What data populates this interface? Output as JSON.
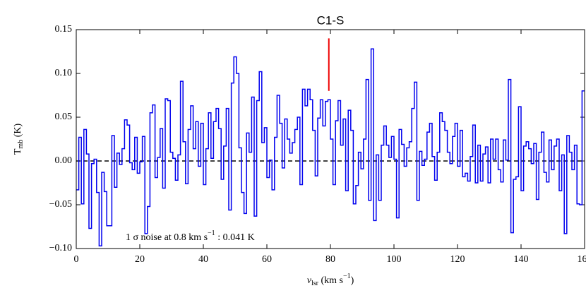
{
  "chart_data": {
    "type": "step",
    "title": "C1-S",
    "xlabel": [
      "v",
      "lsr",
      " (km s",
      "−1",
      ")"
    ],
    "ylabel": [
      "T",
      "mb",
      " (K)"
    ],
    "annotation": [
      "1 σ noise at 0.8 km s",
      "−1",
      " : 0.041 K"
    ],
    "xlim": [
      0,
      160
    ],
    "xticks": [
      0,
      20,
      40,
      60,
      80,
      100,
      120,
      140,
      160
    ],
    "ylim": [
      -0.1,
      0.15
    ],
    "yticks": [
      {
        "value": -0.1,
        "label": "−0.10"
      },
      {
        "value": -0.05,
        "label": "−0.05"
      },
      {
        "value": 0,
        "label": "0.00"
      },
      0.05,
      {
        "value": 0.1,
        "label": "0.10"
      },
      0.15
    ],
    "hline": 0,
    "marker": {
      "x": 79.5,
      "y": [
        0.08,
        0.14
      ],
      "color": "#ee0000"
    },
    "series": [
      {
        "color": "#0000ee",
        "x": [
          0,
          0.8,
          1.6,
          2.4,
          3.2,
          4,
          4.8,
          5.6,
          6.4,
          7.2,
          8,
          8.8,
          9.6,
          10.4,
          11.2,
          12,
          12.8,
          13.6,
          14.4,
          15.2,
          16,
          16.8,
          17.6,
          18.4,
          19.2,
          20,
          20.8,
          21.6,
          22.4,
          23.2,
          24,
          24.8,
          25.6,
          26.4,
          27.2,
          28,
          28.8,
          29.6,
          30.4,
          31.2,
          32,
          32.8,
          33.6,
          34.4,
          35.2,
          36,
          36.8,
          37.6,
          38.4,
          39.2,
          40,
          40.8,
          41.6,
          42.4,
          43.2,
          44,
          44.8,
          45.6,
          46.4,
          47.2,
          48,
          48.8,
          49.6,
          50.4,
          51.2,
          52,
          52.8,
          53.6,
          54.4,
          55.2,
          56,
          56.8,
          57.6,
          58.4,
          59.2,
          60,
          60.8,
          61.6,
          62.4,
          63.2,
          64,
          64.8,
          65.6,
          66.4,
          67.2,
          68,
          68.8,
          69.6,
          70.4,
          71.2,
          72,
          72.8,
          73.6,
          74.4,
          75.2,
          76,
          76.8,
          77.6,
          78.4,
          79.2,
          80,
          80.8,
          81.6,
          82.4,
          83.2,
          84,
          84.8,
          85.6,
          86.4,
          87.2,
          88,
          88.8,
          89.6,
          90.4,
          91.2,
          92,
          92.8,
          93.6,
          94.4,
          95.2,
          96,
          96.8,
          97.6,
          98.4,
          99.2,
          100,
          100.8,
          101.6,
          102.4,
          103.2,
          104,
          104.8,
          105.6,
          106.4,
          107.2,
          108,
          108.8,
          109.6,
          110.4,
          111.2,
          112,
          112.8,
          113.6,
          114.4,
          115.2,
          116,
          116.8,
          117.6,
          118.4,
          119.2,
          120,
          120.8,
          121.6,
          122.4,
          123.2,
          124,
          124.8,
          125.6,
          126.4,
          127.2,
          128,
          128.8,
          129.6,
          130.4,
          131.2,
          132,
          132.8,
          133.6,
          134.4,
          135.2,
          136,
          136.8,
          137.6,
          138.4,
          139.2,
          140,
          140.8,
          141.6,
          142.4,
          143.2,
          144,
          144.8,
          145.6,
          146.4,
          147.2,
          148,
          148.8,
          149.6,
          150.4,
          151.2,
          152,
          152.8,
          153.6,
          154.4,
          155.2,
          156,
          156.8,
          157.6,
          158.4,
          159.2
        ],
        "values": [
          -0.033,
          0.027,
          -0.049,
          0.036,
          0.008,
          -0.077,
          -0.003,
          0.002,
          -0.036,
          -0.097,
          -0.013,
          -0.035,
          -0.074,
          -0.074,
          0.029,
          -0.03,
          0.009,
          -0.004,
          0.014,
          0.047,
          0.041,
          -0.002,
          -0.01,
          0.027,
          -0.014,
          -0.001,
          0.028,
          -0.083,
          -0.052,
          0.055,
          0.064,
          -0.019,
          0.004,
          0.037,
          -0.031,
          0.071,
          0.069,
          0.01,
          0.003,
          -0.022,
          0.007,
          0.091,
          0.022,
          -0.026,
          0.036,
          0.063,
          0.014,
          0.045,
          -0.006,
          0.043,
          -0.027,
          0.014,
          0.055,
          0.003,
          0.045,
          0.06,
          0.037,
          -0.021,
          0.017,
          0.06,
          -0.056,
          0.089,
          0.119,
          0.1,
          0.015,
          -0.036,
          -0.06,
          0.032,
          0.01,
          0.073,
          -0.063,
          0.069,
          0.102,
          0.021,
          0.038,
          -0.019,
          0.001,
          -0.033,
          0.027,
          0.075,
          0.043,
          -0.008,
          0.048,
          0.025,
          0.009,
          0.021,
          0.036,
          0.05,
          -0.027,
          0.082,
          0.063,
          0.082,
          0.07,
          0.035,
          -0.017,
          0.049,
          0.07,
          0.04,
          0.068,
          0.07,
          0.025,
          -0.027,
          0.046,
          0.069,
          0.018,
          0.048,
          -0.034,
          0.058,
          0.035,
          -0.049,
          -0.028,
          0.01,
          -0.009,
          0.025,
          0.093,
          -0.045,
          0.128,
          -0.068,
          0.007,
          -0.045,
          0.018,
          0.04,
          0.018,
          0.004,
          0.028,
          0.002,
          -0.065,
          0.036,
          0.019,
          -0.006,
          0.015,
          0.022,
          0.06,
          0.09,
          -0.045,
          0.011,
          -0.005,
          0.002,
          0.033,
          0.043,
          0.005,
          -0.022,
          0.01,
          0.055,
          0.045,
          0.035,
          0.01,
          -0.003,
          0.028,
          0.043,
          -0.006,
          0.035,
          -0.018,
          -0.014,
          -0.023,
          0.005,
          0.041,
          -0.025,
          0.018,
          -0.023,
          0.008,
          0.016,
          -0.025,
          0.025,
          0.002,
          0.025,
          -0.01,
          -0.024,
          0.024,
          0.001,
          0.093,
          -0.082,
          -0.021,
          -0.018,
          0.062,
          -0.034,
          0.017,
          0.022,
          0.014,
          -0.003,
          0.02,
          -0.044,
          0.01,
          0.033,
          -0.013,
          -0.024,
          0.024,
          -0.01,
          0.017,
          0.025,
          -0.034,
          0.007,
          -0.083,
          0.029,
          0.01,
          -0.01,
          0.018,
          -0.049,
          -0.05,
          0.08
        ]
      }
    ]
  }
}
